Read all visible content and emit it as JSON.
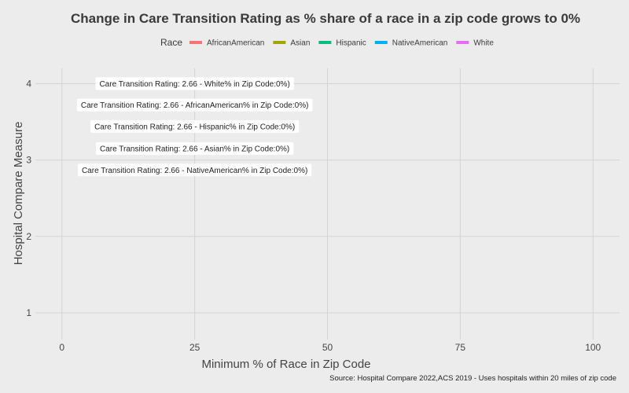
{
  "chart_data": {
    "type": "scatter",
    "title": "Change in Care Transition Rating as % share of a race in a zip code grows to 0%",
    "xlabel": "Minimum % of Race in Zip Code",
    "ylabel": "Hospital Compare Measure",
    "caption": "Source: Hospital Compare 2022,ACS 2019 - Uses hospitals within 20 miles of zip code",
    "xlim": [
      -5,
      105
    ],
    "ylim": [
      0.65,
      4.2
    ],
    "x_ticks": [
      0,
      25,
      50,
      75,
      100
    ],
    "y_ticks": [
      1,
      2,
      3,
      4
    ],
    "grid": true,
    "legend": {
      "title": "Race",
      "position": "top",
      "items": [
        {
          "label": "AfricanAmerican",
          "color": "#F8766D"
        },
        {
          "label": "Asian",
          "color": "#A3A500"
        },
        {
          "label": "Hispanic",
          "color": "#00BF7D"
        },
        {
          "label": "NativeAmerican",
          "color": "#00B0F6"
        },
        {
          "label": "White",
          "color": "#E76BF3"
        }
      ]
    },
    "annotations": [
      {
        "text": "Care Transition Rating: 2.66 - White% in Zip Code:0%)",
        "x": 25,
        "y": 4.0
      },
      {
        "text": "Care Transition Rating: 2.66 - AfricanAmerican% in Zip Code:0%)",
        "x": 25,
        "y": 3.72
      },
      {
        "text": "Care Transition Rating: 2.66 - Hispanic% in Zip Code:0%)",
        "x": 25,
        "y": 3.44
      },
      {
        "text": "Care Transition Rating: 2.66 - Asian% in Zip Code:0%)",
        "x": 25,
        "y": 3.15
      },
      {
        "text": "Care Transition Rating: 2.66 - NativeAmerican% in Zip Code:0%)",
        "x": 25,
        "y": 2.87
      }
    ]
  }
}
